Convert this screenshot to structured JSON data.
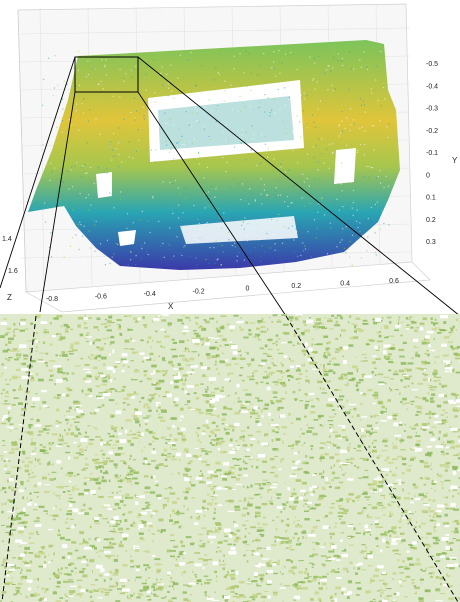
{
  "chart_data": [
    {
      "type": "scatter",
      "subtype": "3d-point-cloud",
      "title": "",
      "xlabel": "X",
      "ylabel": "Y",
      "zlabel": "Z",
      "xticks": [
        "-0.8",
        "-0.6",
        "-0.4",
        "-0.2",
        "0",
        "0.2",
        "0.4",
        "0.6"
      ],
      "yticks": [
        "-0.5",
        "-0.4",
        "-0.3",
        "-0.2",
        "-0.1",
        "0",
        "0.1",
        "0.2",
        "0.3"
      ],
      "zticks": [
        "1.4",
        "1.6"
      ],
      "xlim": [
        -0.8,
        0.7
      ],
      "ylim": [
        -0.5,
        0.35
      ],
      "grid": true,
      "colormap": [
        "#3e26a8",
        "#2f8ac4",
        "#1fb6a8",
        "#79c35d",
        "#d9b531",
        "#f9fb0e"
      ]
    },
    {
      "type": "scatter",
      "subtype": "zoomed-inset",
      "title": "",
      "grid": false,
      "colors": [
        "#8ab85a",
        "#a9c66a",
        "#c8d48a"
      ]
    }
  ]
}
